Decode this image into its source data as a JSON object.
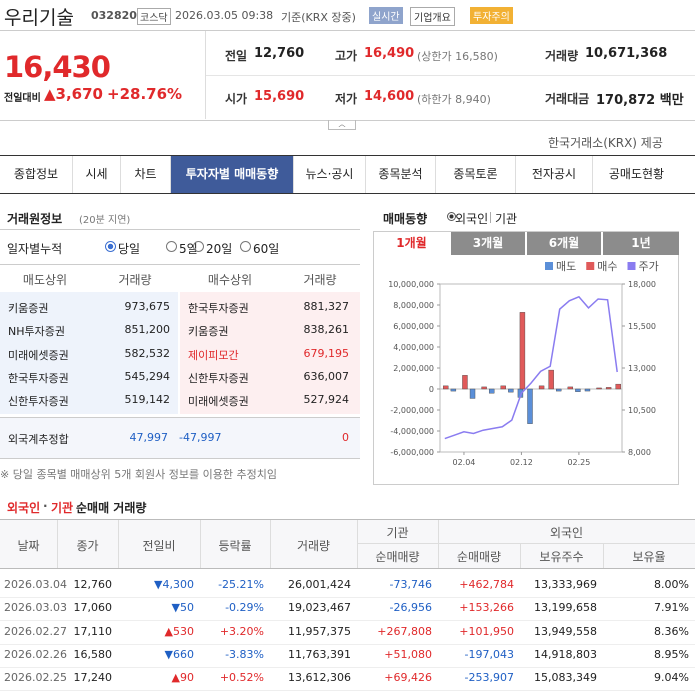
{
  "header": {
    "name": "우리기술",
    "code": "032820",
    "market": "코스닥",
    "datetime": "2026.03.05 09:38",
    "basis": "기준(KRX 장중)",
    "badges": [
      "실시간",
      "기업개요",
      "투자주의"
    ]
  },
  "price": {
    "current": "16,430",
    "change_label": "전일대비",
    "change": "▲3,670",
    "rate": "+28.76%"
  },
  "stats": [
    {
      "label": "전일",
      "value": "12,760"
    },
    {
      "label": "고가",
      "value": "16,490",
      "sub": "(상한가 16,580)",
      "color": "#e0292b"
    },
    {
      "label": "거래량",
      "value": "10,671,368"
    },
    {
      "label": "시가",
      "value": "15,690",
      "color": "#e0292b"
    },
    {
      "label": "저가",
      "value": "14,600",
      "sub": "(하한가 8,940)",
      "color": "#e0292b"
    },
    {
      "label": "거래대금",
      "value": "170,872 백만"
    }
  ],
  "source": "한국거래소(KRX) 제공",
  "tabs": {
    "items": [
      "종합정보",
      "시세",
      "차트",
      "투자자별 매매동향",
      "뉴스·공시",
      "종목분석",
      "종목토론",
      "전자공시",
      "공매도현황"
    ],
    "active": 3
  },
  "brokers": {
    "title": "거래원정보",
    "note": "(20분 지연)",
    "period_label": "일자별누적",
    "periods": [
      "당일",
      "5일",
      "20일",
      "60일"
    ],
    "selected": 0,
    "headers": [
      "매도상위",
      "거래량",
      "매수상위",
      "거래량"
    ],
    "rows": [
      {
        "sell": "키움증권",
        "sell_vol": "973,675",
        "buy": "한국투자증권",
        "buy_vol": "881,327"
      },
      {
        "sell": "NH투자증권",
        "sell_vol": "851,200",
        "buy": "키움증권",
        "buy_vol": "838,261"
      },
      {
        "sell": "미래에셋증권",
        "sell_vol": "582,532",
        "buy": "제이피모간",
        "buy_vol": "679,195",
        "buy_color": "#e0292b"
      },
      {
        "sell": "한국투자증권",
        "sell_vol": "545,294",
        "buy": "신한투자증권",
        "buy_vol": "636,007"
      },
      {
        "sell": "신한투자증권",
        "sell_vol": "519,142",
        "buy": "미래에셋증권",
        "buy_vol": "527,924"
      }
    ],
    "foreign": {
      "label": "외국계추정합",
      "sell_vol": "47,997",
      "net": "-47,997",
      "buy_vol": "0"
    },
    "footnote": "※ 당일 종목별 매매상위 5개 회원사 정보를 이용한 추정치임"
  },
  "trend": {
    "title": "매매동향",
    "toggles": [
      "외국인",
      "기관"
    ],
    "periods": [
      "1개월",
      "3개월",
      "6개월",
      "1년"
    ],
    "active": 0
  },
  "chart_data": {
    "type": "bar",
    "categories": [
      null,
      null,
      "02.04",
      null,
      null,
      null,
      null,
      null,
      "02.12",
      null,
      null,
      null,
      null,
      null,
      "02.25",
      null,
      null,
      null,
      null
    ],
    "series": [
      {
        "name": "매도",
        "color": "#5b8fd8",
        "values": [
          null,
          -200000,
          null,
          -900000,
          null,
          -400000,
          null,
          -300000,
          -800000,
          -3300000,
          null,
          null,
          -200000,
          null,
          -253907,
          -197043,
          null,
          null,
          null
        ]
      },
      {
        "name": "매수",
        "color": "#e05a5a",
        "values": [
          300000,
          null,
          1300000,
          null,
          200000,
          null,
          300000,
          null,
          7300000,
          null,
          300000,
          1800000,
          null,
          200000,
          null,
          null,
          101950,
          153266,
          462784
        ]
      },
      {
        "name": "주가",
        "color": "#8a7cf0",
        "type": "line",
        "axis": "y2",
        "values": [
          8800,
          9000,
          9200,
          9100,
          9300,
          9400,
          9500,
          9900,
          11500,
          12100,
          12800,
          13100,
          16500,
          17000,
          17240,
          16580,
          17110,
          17060,
          12760
        ]
      }
    ],
    "ylim": [
      -6000000,
      10000000
    ],
    "yticks": [
      {
        "value": -6000000,
        "label": "-6,000,000"
      },
      {
        "value": -4000000,
        "label": "-4,000,000"
      },
      {
        "value": -2000000,
        "label": "-2,000,000"
      },
      0,
      {
        "value": 2000000,
        "label": "2,000,000"
      },
      {
        "value": 4000000,
        "label": "4,000,000"
      },
      {
        "value": 6000000,
        "label": "6,000,000"
      },
      {
        "value": 8000000,
        "label": "8,000,000"
      },
      {
        "value": 10000000,
        "label": "10,000,000"
      }
    ],
    "y2lim": [
      8000,
      18000
    ],
    "y2ticks": [
      {
        "value": 8000,
        "label": "8,000"
      },
      {
        "value": 10500,
        "label": "10,500"
      },
      {
        "value": 13000,
        "label": "13,000"
      },
      {
        "value": 15500,
        "label": "15,500"
      },
      {
        "value": 18000,
        "label": "18,000"
      }
    ],
    "legend": "top-right"
  },
  "netflow": {
    "title": [
      "외국인",
      "·",
      "기관",
      "순매매 거래량"
    ],
    "headers": [
      "날짜",
      "종가",
      "전일비",
      "등락률",
      "거래량"
    ],
    "groups": [
      "기관",
      "외국인"
    ],
    "subheaders": [
      "순매매량",
      "순매매량",
      "보유주수",
      "보유율"
    ],
    "rows": [
      [
        "2026.03.04",
        "12,760",
        "▼4,300",
        "-25.21%",
        "26,001,424",
        "-73,746",
        "+462,784",
        "13,333,969",
        "8.00%"
      ],
      [
        "2026.03.03",
        "17,060",
        "▼50",
        "-0.29%",
        "19,023,467",
        "-26,956",
        "+153,266",
        "13,199,658",
        "7.91%"
      ],
      [
        "2026.02.27",
        "17,110",
        "▲530",
        "+3.20%",
        "11,957,375",
        "+267,808",
        "+101,950",
        "13,949,558",
        "8.36%"
      ],
      [
        "2026.02.26",
        "16,580",
        "▼660",
        "-3.83%",
        "11,763,391",
        "+51,080",
        "-197,043",
        "14,918,803",
        "8.95%"
      ],
      [
        "2026.02.25",
        "17,240",
        "▲90",
        "+0.52%",
        "13,612,306",
        "+69,426",
        "-253,907",
        "15,083,349",
        "9.04%"
      ]
    ]
  }
}
